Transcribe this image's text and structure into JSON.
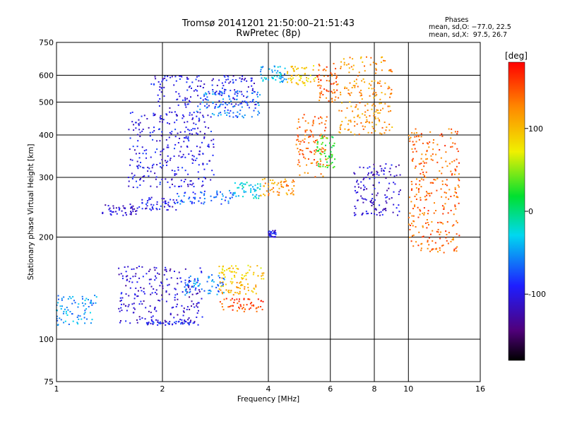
{
  "chart_data": {
    "type": "scatter",
    "title": "Tromsø 20141201 21:50:00–21:51:43",
    "subtitle": "RwPretec (8p)",
    "xlabel": "Frequency [MHz]",
    "ylabel": "Stationary phase Virtual Height [km]",
    "x_scale": "log",
    "y_scale": "log",
    "xlim": [
      1,
      16
    ],
    "ylim": [
      75,
      750
    ],
    "x_ticks": [
      1,
      2,
      4,
      6,
      8,
      10,
      16
    ],
    "y_ticks": [
      75,
      100,
      200,
      300,
      400,
      500,
      600,
      750
    ],
    "x_gridlines": [
      2,
      4,
      6,
      8,
      10
    ],
    "y_gridlines": [
      100,
      200,
      300,
      400,
      500,
      600
    ],
    "grid": true,
    "legend": {
      "title": "Phases",
      "line_o": "mean, sd,O: −77.0, 22.5",
      "line_x": "mean, sd,X:  97.5, 26.7"
    },
    "colorbar": {
      "label": "[deg]",
      "ticks": [
        100,
        0,
        -100
      ],
      "range": [
        -180,
        180
      ],
      "colormap": "rainbow (black → purple → blue → cyan → green → yellow → orange → red)"
    },
    "clusters": [
      {
        "f": [
          1.35,
          1.7
        ],
        "h": [
          230,
          250
        ],
        "phase": -110
      },
      {
        "f": [
          1.7,
          2.2
        ],
        "h": [
          240,
          262
        ],
        "phase": -100
      },
      {
        "f": [
          2.2,
          3.2
        ],
        "h": [
          250,
          275
        ],
        "phase": -70
      },
      {
        "f": [
          3.2,
          3.8
        ],
        "h": [
          260,
          290
        ],
        "phase": -30
      },
      {
        "f": [
          3.8,
          4.8
        ],
        "h": [
          265,
          300
        ],
        "phase": 120
      },
      {
        "f": [
          4.8,
          5.9
        ],
        "h": [
          300,
          460
        ],
        "phase": 140
      },
      {
        "f": [
          5.5,
          6.2
        ],
        "h": [
          320,
          400
        ],
        "phase": 30
      },
      {
        "f": [
          1.6,
          2.8
        ],
        "h": [
          280,
          470
        ],
        "phase": -100
      },
      {
        "f": [
          1.85,
          3.7
        ],
        "h": [
          480,
          600
        ],
        "phase": -100
      },
      {
        "f": [
          2.5,
          3.8
        ],
        "h": [
          450,
          540
        ],
        "phase": -60
      },
      {
        "f": [
          3.8,
          4.5
        ],
        "h": [
          570,
          640
        ],
        "phase": -40
      },
      {
        "f": [
          4.5,
          5.5
        ],
        "h": [
          560,
          640
        ],
        "phase": 90
      },
      {
        "f": [
          5.5,
          6.3
        ],
        "h": [
          500,
          650
        ],
        "phase": 140
      },
      {
        "f": [
          6.3,
          9.0
        ],
        "h": [
          400,
          680
        ],
        "phase": 120
      },
      {
        "f": [
          4.0,
          4.2
        ],
        "h": [
          200,
          210
        ],
        "phase": -100
      },
      {
        "f": [
          1.0,
          1.3
        ],
        "h": [
          110,
          135
        ],
        "phase": -50
      },
      {
        "f": [
          1.5,
          2.6
        ],
        "h": [
          110,
          165
        ],
        "phase": -110
      },
      {
        "f": [
          1.8,
          2.4
        ],
        "h": [
          110,
          113
        ],
        "phase": -90
      },
      {
        "f": [
          2.3,
          3.0
        ],
        "h": [
          135,
          155
        ],
        "phase": -60
      },
      {
        "f": [
          2.9,
          3.9
        ],
        "h": [
          150,
          165
        ],
        "phase": 90
      },
      {
        "f": [
          2.9,
          3.7
        ],
        "h": [
          135,
          148
        ],
        "phase": 110
      },
      {
        "f": [
          2.9,
          3.9
        ],
        "h": [
          120,
          132
        ],
        "phase": 150
      },
      {
        "f": [
          10.0,
          14.0
        ],
        "h": [
          180,
          420
        ],
        "phase": 140
      },
      {
        "f": [
          7.0,
          9.5
        ],
        "h": [
          230,
          330
        ],
        "phase": -110
      }
    ]
  }
}
